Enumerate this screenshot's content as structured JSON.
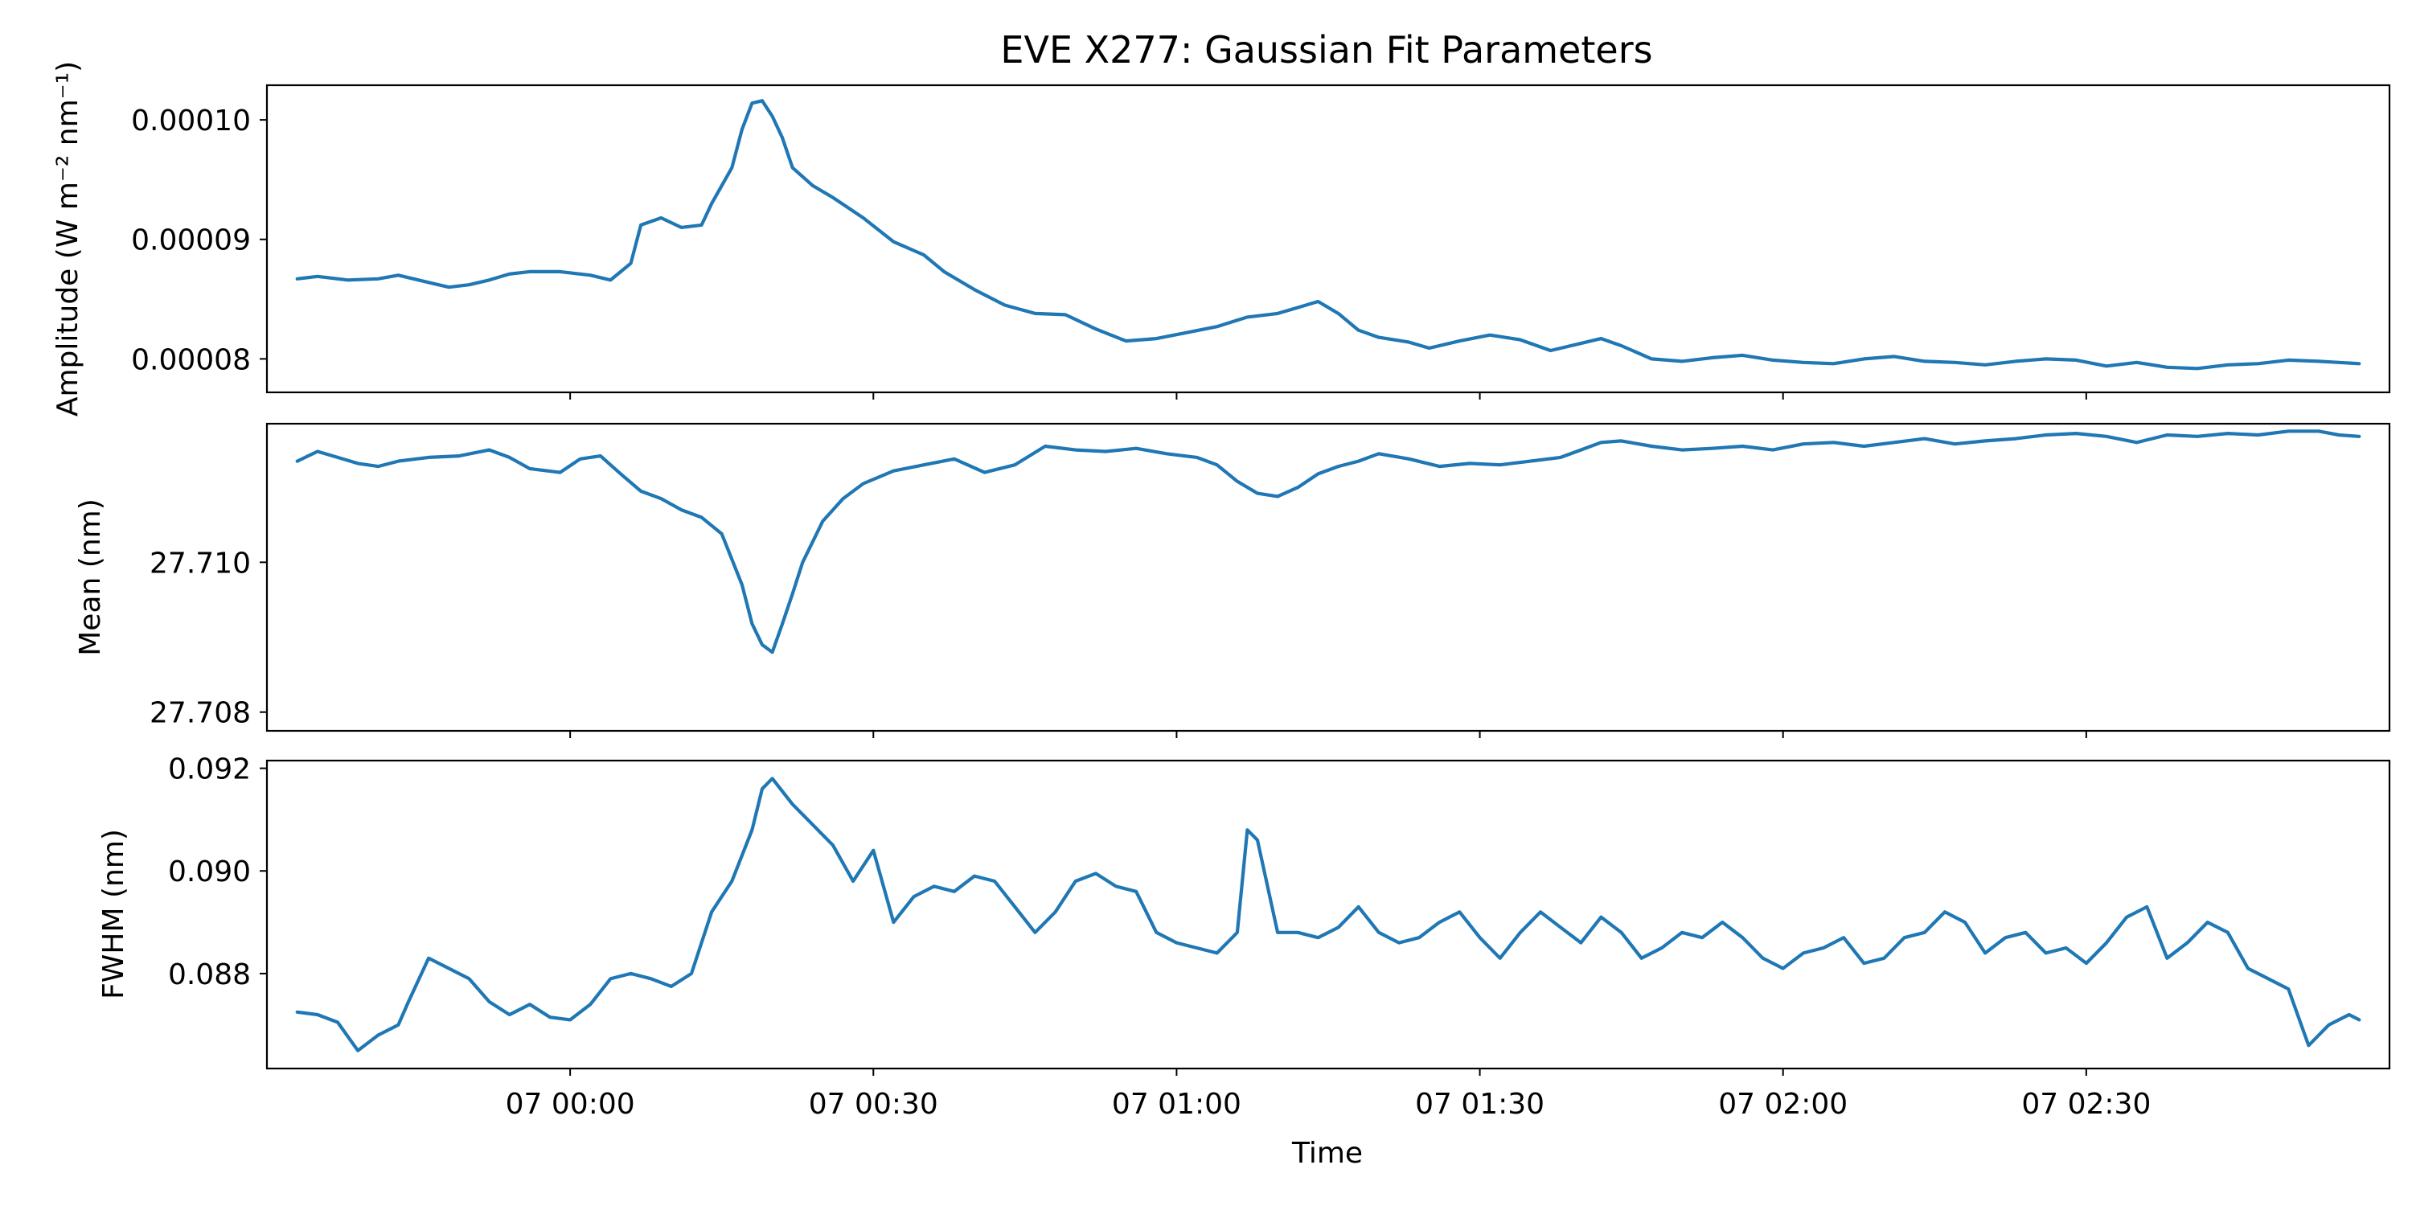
{
  "chart_data": {
    "type": "line",
    "title": "EVE X277: Gaussian Fit Parameters",
    "xlabel": "Time",
    "x_tick_labels": [
      "07 00:00",
      "07 00:30",
      "07 01:00",
      "07 01:30",
      "07 02:00",
      "07 02:30"
    ],
    "x_tick_minutes": [
      0,
      30,
      60,
      90,
      120,
      150
    ],
    "xlim_minutes": [
      -30,
      180
    ],
    "grid": false,
    "legend": "none",
    "line_color": "#1f77b4",
    "panels": [
      {
        "ylabel": "Amplitude (W m⁻² nm⁻¹)",
        "ylim": [
          7.72e-05,
          0.0001029
        ],
        "yticks": [
          8e-05,
          9e-05,
          0.0001
        ],
        "ytick_labels": [
          "0.00008",
          "0.00009",
          "0.00010"
        ],
        "series": {
          "x_minutes": [
            -27,
            -25,
            -22,
            -19,
            -17,
            -14,
            -12,
            -10,
            -8,
            -6,
            -4,
            -1,
            2,
            4,
            6,
            7,
            9,
            11,
            13,
            14,
            16,
            17,
            18,
            19,
            20,
            21,
            22,
            24,
            26,
            29,
            32,
            35,
            37,
            40,
            43,
            46,
            49,
            52,
            55,
            58,
            61,
            64,
            67,
            70,
            72,
            74,
            76,
            78,
            80,
            83,
            85,
            88,
            91,
            94,
            97,
            100,
            102,
            104,
            107,
            110,
            113,
            116,
            119,
            122,
            125,
            128,
            131,
            134,
            137,
            140,
            143,
            146,
            149,
            152,
            155,
            158,
            161,
            164,
            167,
            170,
            173,
            175,
            177
          ],
          "values": [
            8.67e-05,
            8.69e-05,
            8.66e-05,
            8.67e-05,
            8.7e-05,
            8.64e-05,
            8.6e-05,
            8.62e-05,
            8.66e-05,
            8.71e-05,
            8.73e-05,
            8.73e-05,
            8.7e-05,
            8.66e-05,
            8.8e-05,
            9.12e-05,
            9.18e-05,
            9.1e-05,
            9.12e-05,
            9.3e-05,
            9.6e-05,
            9.92e-05,
            0.0001014,
            0.0001016,
            0.0001003,
            9.85e-05,
            9.6e-05,
            9.45e-05,
            9.35e-05,
            9.18e-05,
            8.98e-05,
            8.87e-05,
            8.73e-05,
            8.58e-05,
            8.45e-05,
            8.38e-05,
            8.37e-05,
            8.25e-05,
            8.15e-05,
            8.17e-05,
            8.22e-05,
            8.27e-05,
            8.35e-05,
            8.38e-05,
            8.43e-05,
            8.48e-05,
            8.38e-05,
            8.24e-05,
            8.18e-05,
            8.14e-05,
            8.09e-05,
            8.15e-05,
            8.2e-05,
            8.16e-05,
            8.07e-05,
            8.13e-05,
            8.17e-05,
            8.11e-05,
            8e-05,
            7.98e-05,
            8.01e-05,
            8.03e-05,
            7.99e-05,
            7.97e-05,
            7.96e-05,
            8e-05,
            8.02e-05,
            7.98e-05,
            7.97e-05,
            7.95e-05,
            7.98e-05,
            8e-05,
            7.99e-05,
            7.94e-05,
            7.97e-05,
            7.93e-05,
            7.92e-05,
            7.95e-05,
            7.96e-05,
            7.99e-05,
            7.98e-05,
            7.97e-05,
            7.96e-05
          ]
        }
      },
      {
        "ylabel": "Mean (nm)",
        "ylim": [
          27.70775,
          27.71185
        ],
        "yticks": [
          27.708,
          27.71
        ],
        "ytick_labels": [
          "27.708",
          "27.710"
        ],
        "series": {
          "x_minutes": [
            -27,
            -25,
            -23,
            -21,
            -19,
            -17,
            -14,
            -11,
            -8,
            -6,
            -4,
            -1,
            1,
            3,
            5,
            7,
            9,
            11,
            13,
            15,
            17,
            18,
            19,
            20,
            21,
            22,
            23,
            25,
            27,
            29,
            32,
            35,
            38,
            41,
            44,
            47,
            50,
            53,
            56,
            59,
            62,
            64,
            66,
            68,
            70,
            72,
            74,
            76,
            78,
            80,
            83,
            86,
            89,
            92,
            95,
            98,
            100,
            102,
            104,
            107,
            110,
            113,
            116,
            119,
            122,
            125,
            128,
            131,
            134,
            137,
            140,
            143,
            146,
            149,
            152,
            155,
            158,
            161,
            164,
            167,
            170,
            173,
            175,
            177
          ],
          "values": [
            27.71135,
            27.71148,
            27.7114,
            27.71132,
            27.71128,
            27.71135,
            27.7114,
            27.71142,
            27.7115,
            27.7114,
            27.71125,
            27.7112,
            27.71138,
            27.71142,
            27.71118,
            27.71095,
            27.71085,
            27.7107,
            27.7106,
            27.71038,
            27.7097,
            27.70918,
            27.7089,
            27.7088,
            27.70918,
            27.70958,
            27.71,
            27.71055,
            27.71085,
            27.71105,
            27.71122,
            27.7113,
            27.71138,
            27.7112,
            27.7113,
            27.71155,
            27.7115,
            27.71148,
            27.71152,
            27.71145,
            27.7114,
            27.7113,
            27.71108,
            27.71092,
            27.71088,
            27.711,
            27.71118,
            27.71128,
            27.71135,
            27.71145,
            27.71138,
            27.71128,
            27.71132,
            27.7113,
            27.71135,
            27.7114,
            27.7115,
            27.7116,
            27.71162,
            27.71155,
            27.7115,
            27.71152,
            27.71155,
            27.7115,
            27.71158,
            27.7116,
            27.71155,
            27.7116,
            27.71165,
            27.71158,
            27.71162,
            27.71165,
            27.7117,
            27.71172,
            27.71168,
            27.7116,
            27.7117,
            27.71168,
            27.71172,
            27.7117,
            27.71175,
            27.71175,
            27.7117,
            27.71168
          ]
        }
      },
      {
        "ylabel": "FWHM (nm)",
        "ylim": [
          0.08615,
          0.09215
        ],
        "yticks": [
          0.088,
          0.09,
          0.092
        ],
        "ytick_labels": [
          "0.088",
          "0.090",
          "0.092"
        ],
        "series": {
          "x_minutes": [
            -27,
            -25,
            -23,
            -21,
            -19,
            -17,
            -16,
            -14,
            -12,
            -10,
            -8,
            -6,
            -4,
            -2,
            0,
            2,
            4,
            6,
            8,
            10,
            12,
            14,
            16,
            18,
            19,
            20,
            22,
            24,
            26,
            28,
            30,
            32,
            34,
            36,
            38,
            40,
            42,
            44,
            46,
            48,
            50,
            52,
            54,
            56,
            58,
            60,
            62,
            64,
            66,
            67,
            68,
            70,
            72,
            74,
            76,
            78,
            80,
            82,
            84,
            86,
            88,
            90,
            92,
            94,
            96,
            98,
            100,
            102,
            104,
            106,
            108,
            110,
            112,
            114,
            116,
            118,
            120,
            122,
            124,
            126,
            128,
            130,
            132,
            134,
            136,
            138,
            140,
            142,
            144,
            146,
            148,
            150,
            152,
            154,
            156,
            158,
            160,
            162,
            164,
            166,
            168,
            170,
            172,
            174,
            176,
            177
          ],
          "values": [
            0.08725,
            0.0872,
            0.08705,
            0.0865,
            0.0868,
            0.087,
            0.08745,
            0.0883,
            0.0881,
            0.0879,
            0.08745,
            0.0872,
            0.0874,
            0.08715,
            0.0871,
            0.0874,
            0.0879,
            0.088,
            0.0879,
            0.08775,
            0.088,
            0.0892,
            0.0898,
            0.0908,
            0.0916,
            0.0918,
            0.0913,
            0.0909,
            0.0905,
            0.0898,
            0.0904,
            0.089,
            0.0895,
            0.0897,
            0.0896,
            0.0899,
            0.0898,
            0.0893,
            0.0888,
            0.0892,
            0.0898,
            0.08995,
            0.0897,
            0.0896,
            0.0888,
            0.0886,
            0.0885,
            0.0884,
            0.0888,
            0.0908,
            0.0906,
            0.0888,
            0.0888,
            0.0887,
            0.0889,
            0.0893,
            0.0888,
            0.0886,
            0.0887,
            0.089,
            0.0892,
            0.0887,
            0.0883,
            0.0888,
            0.0892,
            0.0889,
            0.0886,
            0.0891,
            0.0888,
            0.0883,
            0.0885,
            0.0888,
            0.0887,
            0.089,
            0.0887,
            0.0883,
            0.0881,
            0.0884,
            0.0885,
            0.0887,
            0.0882,
            0.0883,
            0.0887,
            0.0888,
            0.0892,
            0.089,
            0.0884,
            0.0887,
            0.0888,
            0.0884,
            0.0885,
            0.0882,
            0.0886,
            0.0891,
            0.0893,
            0.0883,
            0.0886,
            0.089,
            0.0888,
            0.0881,
            0.0879,
            0.0877,
            0.0866,
            0.087,
            0.0872,
            0.0871
          ]
        }
      }
    ]
  }
}
